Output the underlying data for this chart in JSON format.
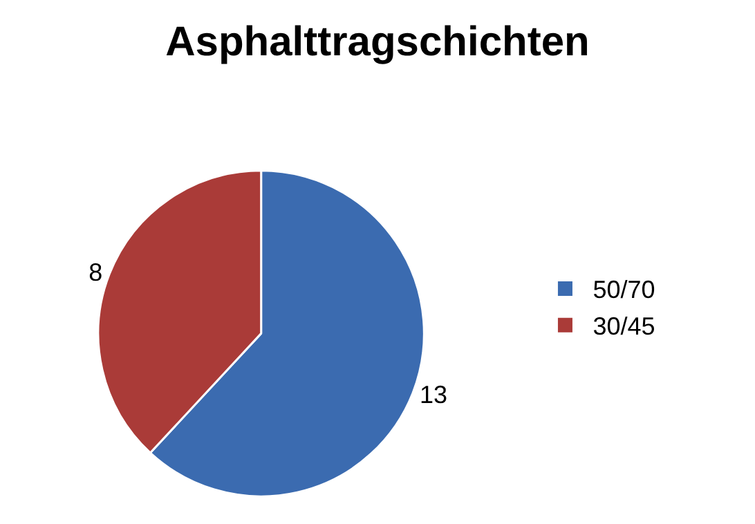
{
  "chart_data": {
    "type": "pie",
    "title": "Asphalttragschichten",
    "categories": [
      "50/70",
      "30/45"
    ],
    "values": [
      13,
      8
    ],
    "colors": [
      "#3b6bb0",
      "#aa3b38"
    ],
    "data_labels": true,
    "legend": "right"
  }
}
